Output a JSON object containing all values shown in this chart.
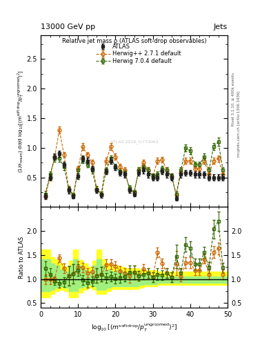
{
  "title_top": "13000 GeV pp",
  "title_right": "Jets",
  "plot_title": "Relative jet mass ρ (ATLAS soft-drop observables)",
  "ylabel_main": "(1/σ$_{\\rm resum}$) dσ/d log$_{10}$[(m$^{\\rm soft\\,drop}$/p$_T^{\\rm ungroomed}$)$^2$]",
  "ylabel_ratio": "Ratio to ATLAS",
  "right_label": "Rivet 3.1.10, ≥ 400k events",
  "right_label2": "mcplots.cern.ch [arXiv:1306.3436]",
  "watermark": "ATLAS 2019_I1772062",
  "xlim": [
    0,
    50
  ],
  "ylim_main": [
    0.0,
    2.9
  ],
  "ylim_ratio": [
    0.4,
    2.5
  ],
  "yticks_main": [
    0.5,
    1.0,
    1.5,
    2.0,
    2.5
  ],
  "yticks_ratio": [
    0.5,
    1.0,
    1.5,
    2.0
  ],
  "atlas_color": "#222222",
  "herwig271_color": "#cc6600",
  "herwig704_color": "#336600",
  "atlas_x": [
    1.25,
    2.5,
    3.75,
    5.0,
    6.25,
    7.5,
    8.75,
    10.0,
    11.25,
    12.5,
    13.75,
    15.0,
    16.25,
    17.5,
    18.75,
    20.0,
    21.25,
    22.5,
    23.75,
    25.0,
    26.25,
    27.5,
    28.75,
    30.0,
    31.25,
    32.5,
    33.75,
    35.0,
    36.25,
    37.5,
    38.75,
    40.0,
    41.25,
    42.5,
    43.75,
    45.0,
    46.25,
    47.5,
    48.75
  ],
  "atlas_y": [
    0.18,
    0.5,
    0.85,
    0.9,
    0.72,
    0.28,
    0.18,
    0.52,
    0.82,
    0.78,
    0.65,
    0.28,
    0.2,
    0.6,
    0.78,
    0.67,
    0.58,
    0.55,
    0.28,
    0.22,
    0.58,
    0.62,
    0.55,
    0.5,
    0.5,
    0.6,
    0.55,
    0.5,
    0.15,
    0.55,
    0.58,
    0.58,
    0.55,
    0.55,
    0.55,
    0.5,
    0.5,
    0.5,
    0.5
  ],
  "atlas_yerr": [
    0.05,
    0.05,
    0.05,
    0.05,
    0.05,
    0.05,
    0.04,
    0.05,
    0.05,
    0.05,
    0.05,
    0.04,
    0.04,
    0.05,
    0.05,
    0.05,
    0.05,
    0.05,
    0.04,
    0.04,
    0.05,
    0.05,
    0.05,
    0.05,
    0.05,
    0.05,
    0.05,
    0.05,
    0.04,
    0.05,
    0.05,
    0.05,
    0.05,
    0.05,
    0.05,
    0.05,
    0.05,
    0.05,
    0.05
  ],
  "h271_x": [
    1.25,
    2.5,
    3.75,
    5.0,
    6.25,
    7.5,
    8.75,
    10.0,
    11.25,
    12.5,
    13.75,
    15.0,
    16.25,
    17.5,
    18.75,
    20.0,
    21.25,
    22.5,
    23.75,
    25.0,
    26.25,
    27.5,
    28.75,
    30.0,
    31.25,
    32.5,
    33.75,
    35.0,
    36.25,
    37.5,
    38.75,
    40.0,
    41.25,
    42.5,
    43.75,
    45.0,
    46.25,
    47.5,
    48.75
  ],
  "h271_y": [
    0.18,
    0.5,
    0.85,
    1.3,
    0.88,
    0.3,
    0.2,
    0.65,
    1.02,
    0.88,
    0.75,
    0.3,
    0.22,
    0.78,
    1.02,
    0.85,
    0.68,
    0.62,
    0.3,
    0.25,
    0.62,
    0.75,
    0.62,
    0.52,
    0.78,
    0.8,
    0.62,
    0.52,
    0.2,
    0.58,
    0.78,
    0.78,
    0.65,
    0.65,
    0.78,
    0.55,
    0.78,
    0.82,
    0.55
  ],
  "h271_yerr": [
    0.04,
    0.04,
    0.04,
    0.06,
    0.05,
    0.04,
    0.04,
    0.05,
    0.06,
    0.05,
    0.05,
    0.04,
    0.04,
    0.05,
    0.06,
    0.05,
    0.05,
    0.05,
    0.04,
    0.04,
    0.05,
    0.05,
    0.05,
    0.05,
    0.05,
    0.05,
    0.05,
    0.05,
    0.04,
    0.05,
    0.05,
    0.05,
    0.05,
    0.05,
    0.05,
    0.05,
    0.05,
    0.05,
    0.05
  ],
  "h704_x": [
    1.25,
    2.5,
    3.75,
    5.0,
    6.25,
    7.5,
    8.75,
    10.0,
    11.25,
    12.5,
    13.75,
    15.0,
    16.25,
    17.5,
    18.75,
    20.0,
    21.25,
    22.5,
    23.75,
    25.0,
    26.25,
    27.5,
    28.75,
    30.0,
    31.25,
    32.5,
    33.75,
    35.0,
    36.25,
    37.5,
    38.75,
    40.0,
    41.25,
    42.5,
    43.75,
    45.0,
    46.25,
    47.5,
    48.75
  ],
  "h704_y": [
    0.22,
    0.55,
    0.82,
    0.82,
    0.68,
    0.3,
    0.2,
    0.62,
    0.8,
    0.72,
    0.62,
    0.3,
    0.22,
    0.62,
    0.82,
    0.68,
    0.6,
    0.58,
    0.32,
    0.25,
    0.62,
    0.68,
    0.62,
    0.52,
    0.55,
    0.65,
    0.62,
    0.52,
    0.22,
    0.62,
    1.0,
    0.95,
    0.72,
    0.72,
    0.85,
    0.62,
    1.02,
    1.1,
    0.62
  ],
  "h704_yerr": [
    0.05,
    0.05,
    0.05,
    0.05,
    0.05,
    0.05,
    0.04,
    0.05,
    0.06,
    0.05,
    0.05,
    0.05,
    0.04,
    0.05,
    0.05,
    0.05,
    0.05,
    0.05,
    0.05,
    0.04,
    0.05,
    0.05,
    0.05,
    0.05,
    0.05,
    0.05,
    0.05,
    0.05,
    0.04,
    0.05,
    0.06,
    0.06,
    0.05,
    0.05,
    0.05,
    0.05,
    0.06,
    0.07,
    0.05
  ],
  "ratio_h271_y": [
    1.0,
    1.0,
    1.0,
    1.44,
    1.22,
    1.07,
    1.11,
    1.25,
    1.24,
    1.13,
    1.15,
    1.07,
    1.1,
    1.3,
    1.31,
    1.27,
    1.17,
    1.13,
    1.07,
    1.14,
    1.07,
    1.21,
    1.13,
    1.04,
    1.56,
    1.33,
    1.13,
    1.04,
    1.33,
    1.05,
    1.34,
    1.34,
    1.18,
    1.18,
    1.42,
    1.1,
    1.56,
    1.64,
    1.1
  ],
  "ratio_h704_y": [
    1.22,
    1.1,
    0.96,
    0.91,
    0.94,
    1.07,
    1.11,
    1.19,
    0.98,
    0.92,
    0.95,
    1.07,
    1.1,
    1.03,
    1.05,
    1.01,
    1.03,
    1.05,
    1.14,
    1.14,
    1.07,
    1.1,
    1.13,
    1.04,
    1.1,
    1.08,
    1.13,
    1.04,
    1.47,
    1.13,
    1.72,
    1.64,
    1.31,
    1.31,
    1.55,
    1.24,
    2.04,
    2.2,
    1.24
  ],
  "ratio_h271_yerr": [
    0.1,
    0.1,
    0.06,
    0.08,
    0.1,
    0.2,
    0.2,
    0.12,
    0.1,
    0.09,
    0.1,
    0.15,
    0.15,
    0.12,
    0.1,
    0.1,
    0.1,
    0.1,
    0.15,
    0.15,
    0.1,
    0.1,
    0.1,
    0.1,
    0.1,
    0.1,
    0.1,
    0.1,
    0.25,
    0.1,
    0.12,
    0.12,
    0.1,
    0.1,
    0.1,
    0.1,
    0.12,
    0.12,
    0.1
  ],
  "ratio_h704_yerr": [
    0.15,
    0.12,
    0.08,
    0.08,
    0.1,
    0.2,
    0.2,
    0.12,
    0.1,
    0.09,
    0.1,
    0.15,
    0.15,
    0.1,
    0.1,
    0.1,
    0.1,
    0.1,
    0.15,
    0.15,
    0.1,
    0.1,
    0.1,
    0.1,
    0.12,
    0.1,
    0.1,
    0.1,
    0.25,
    0.1,
    0.15,
    0.15,
    0.12,
    0.12,
    0.12,
    0.12,
    0.2,
    0.2,
    0.1
  ],
  "yellow_band_x": [
    0,
    1.25,
    2.5,
    3.75,
    5.0,
    6.25,
    7.5,
    8.75,
    10.0,
    11.25,
    12.5,
    13.75,
    15.0,
    16.25,
    17.5,
    18.75,
    20.0,
    21.25,
    22.5,
    23.75,
    25.0,
    26.25,
    27.5,
    28.75,
    30.0,
    31.25,
    32.5,
    33.75,
    35.0,
    36.25,
    37.5,
    38.75,
    40.0,
    41.25,
    42.5,
    43.75,
    45.0,
    46.25,
    47.5,
    48.75,
    50
  ],
  "yellow_band_lo": [
    0.62,
    0.62,
    0.7,
    0.75,
    0.78,
    0.75,
    0.62,
    0.62,
    0.72,
    0.78,
    0.82,
    0.78,
    0.7,
    0.7,
    0.75,
    0.8,
    0.8,
    0.8,
    0.8,
    0.8,
    0.8,
    0.82,
    0.85,
    0.85,
    0.85,
    0.88,
    0.88,
    0.88,
    0.88,
    0.88,
    0.88,
    0.88,
    0.88,
    0.88,
    0.88,
    0.88,
    0.88,
    0.88,
    0.88,
    0.88,
    0.88
  ],
  "yellow_band_hi": [
    1.62,
    1.62,
    1.45,
    1.42,
    1.32,
    1.25,
    1.38,
    1.62,
    1.4,
    1.32,
    1.25,
    1.38,
    1.62,
    1.42,
    1.32,
    1.25,
    1.28,
    1.25,
    1.22,
    1.22,
    1.22,
    1.2,
    1.18,
    1.18,
    1.18,
    1.15,
    1.15,
    1.15,
    1.15,
    1.15,
    1.15,
    1.15,
    1.15,
    1.15,
    1.15,
    1.15,
    1.15,
    1.15,
    1.15,
    1.15,
    1.15
  ],
  "green_band_x": [
    0,
    1.25,
    2.5,
    3.75,
    5.0,
    6.25,
    7.5,
    8.75,
    10.0,
    11.25,
    12.5,
    13.75,
    15.0,
    16.25,
    17.5,
    18.75,
    20.0,
    21.25,
    22.5,
    23.75,
    25.0,
    26.25,
    27.5,
    28.75,
    30.0,
    31.25,
    32.5,
    33.75,
    35.0,
    36.25,
    37.5,
    38.75,
    40.0,
    41.25,
    42.5,
    43.75,
    45.0,
    46.25,
    47.5,
    48.75,
    50
  ],
  "green_band_lo": [
    0.75,
    0.75,
    0.78,
    0.82,
    0.85,
    0.82,
    0.75,
    0.75,
    0.82,
    0.85,
    0.88,
    0.85,
    0.78,
    0.78,
    0.82,
    0.85,
    0.85,
    0.85,
    0.85,
    0.85,
    0.85,
    0.88,
    0.9,
    0.9,
    0.9,
    0.92,
    0.92,
    0.92,
    0.92,
    0.92,
    0.92,
    0.92,
    0.92,
    0.92,
    0.92,
    0.92,
    0.92,
    0.92,
    0.92,
    0.92,
    0.92
  ],
  "green_band_hi": [
    1.42,
    1.42,
    1.32,
    1.28,
    1.2,
    1.15,
    1.28,
    1.42,
    1.28,
    1.2,
    1.15,
    1.28,
    1.42,
    1.28,
    1.2,
    1.15,
    1.18,
    1.15,
    1.12,
    1.12,
    1.12,
    1.1,
    1.08,
    1.08,
    1.08,
    1.06,
    1.06,
    1.06,
    1.06,
    1.06,
    1.06,
    1.06,
    1.06,
    1.06,
    1.06,
    1.06,
    1.06,
    1.06,
    1.06,
    1.06,
    1.06
  ]
}
